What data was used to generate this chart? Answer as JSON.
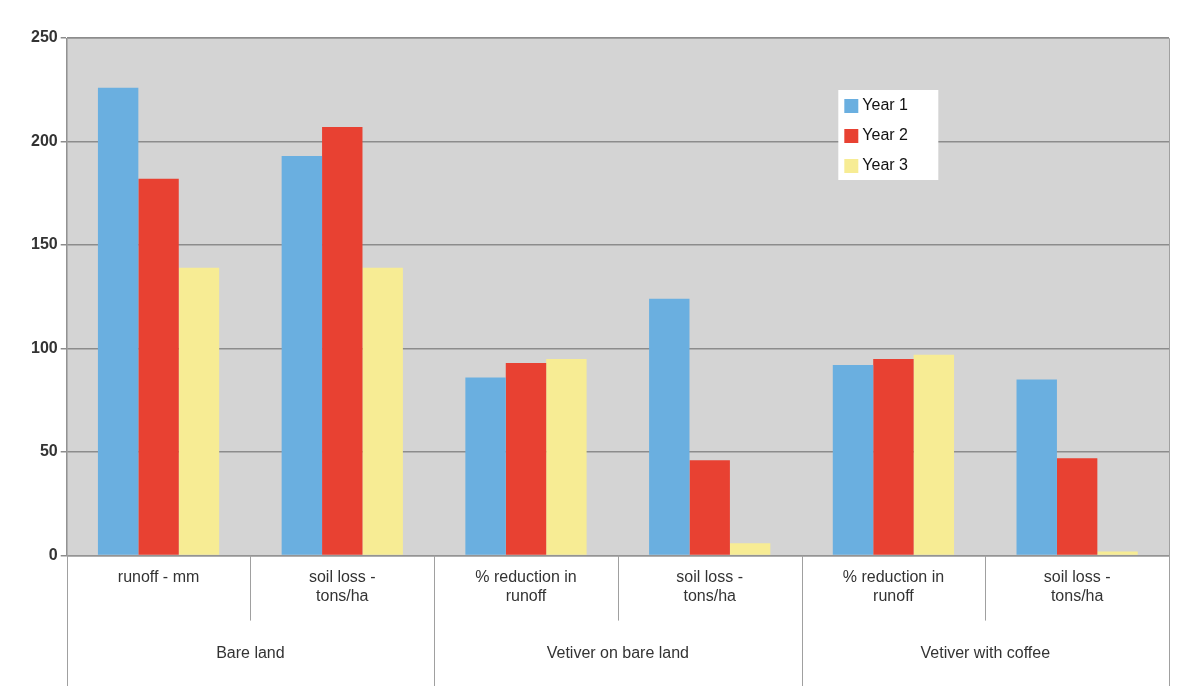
{
  "chart_data": {
    "type": "bar",
    "categories": [
      "runoff - mm",
      "soil loss - tons/ha",
      "% reduction in runoff",
      "soil loss - tons/ha",
      "% reduction in runoff",
      "soil loss - tons/ha"
    ],
    "series": [
      {
        "name": "Year 1",
        "color": "#6aafe0",
        "values": [
          226,
          193,
          86,
          124,
          92,
          85
        ]
      },
      {
        "name": "Year 2",
        "color": "#e84132",
        "values": [
          182,
          207,
          93,
          46,
          95,
          47
        ]
      },
      {
        "name": "Year 3",
        "color": "#f7ec94",
        "values": [
          139,
          139,
          95,
          6,
          97,
          2
        ]
      }
    ],
    "annotations": [
      "Bare land",
      "Vetiver on bare land",
      "Vetiver with coffee"
    ],
    "ylim": [
      0,
      250
    ],
    "yticks": [
      0,
      50,
      100,
      150,
      200,
      250
    ],
    "grid": "y",
    "legend": "top right"
  }
}
